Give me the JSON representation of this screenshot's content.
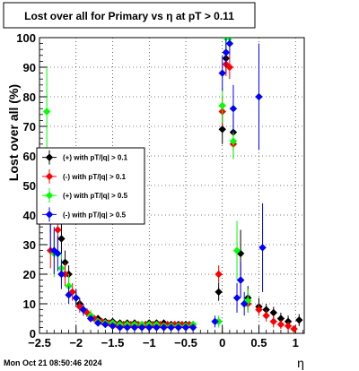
{
  "chart_data": {
    "type": "scatter",
    "title": "Lost over all for Primary vs    η at pT > 0.11",
    "xlabel": "η",
    "ylabel": "Lost over all (%)",
    "xlim": [
      -2.5,
      1.12
    ],
    "ylim": [
      0,
      100
    ],
    "x_ticks": [
      -2.5,
      -2,
      -1.5,
      -1,
      -0.5,
      0,
      0.5,
      1
    ],
    "x_tick_labels": [
      "−2.5",
      "−2",
      "−1.5",
      "−1",
      "−0.5",
      "0",
      "0.5",
      "1"
    ],
    "y_ticks": [
      0,
      10,
      20,
      30,
      40,
      50,
      60,
      70,
      80,
      90,
      100
    ],
    "y_tick_labels": [
      "0",
      "10",
      "20",
      "30",
      "40",
      "50",
      "60",
      "70",
      "80",
      "90",
      "100"
    ],
    "grid": true,
    "legend_position": "left",
    "timestamp": "Mon Oct 21 08:50:46 2024",
    "series": [
      {
        "name": "(+) with pT/|q| > 0.1",
        "color": "#000000",
        "points": [
          {
            "x": -2.35,
            "y": 42,
            "err": 8
          },
          {
            "x": -2.2,
            "y": 32,
            "err": 6
          },
          {
            "x": -2.15,
            "y": 24,
            "err": 4
          },
          {
            "x": -2.1,
            "y": 20,
            "err": 3
          },
          {
            "x": -2.0,
            "y": 12,
            "err": 2
          },
          {
            "x": -1.95,
            "y": 10,
            "err": 2
          },
          {
            "x": -1.9,
            "y": 8,
            "err": 1.5
          },
          {
            "x": -1.8,
            "y": 6,
            "err": 1
          },
          {
            "x": -1.7,
            "y": 5,
            "err": 1
          },
          {
            "x": -1.6,
            "y": 4,
            "err": 1
          },
          {
            "x": -1.5,
            "y": 4,
            "err": 1
          },
          {
            "x": -1.4,
            "y": 3.5,
            "err": 1
          },
          {
            "x": -1.3,
            "y": 3.5,
            "err": 1
          },
          {
            "x": -1.2,
            "y": 3.5,
            "err": 1
          },
          {
            "x": -1.1,
            "y": 3,
            "err": 1
          },
          {
            "x": -1.0,
            "y": 3.5,
            "err": 1
          },
          {
            "x": -0.9,
            "y": 3.5,
            "err": 1
          },
          {
            "x": -0.8,
            "y": 3.5,
            "err": 1
          },
          {
            "x": -0.7,
            "y": 3,
            "err": 1
          },
          {
            "x": -0.6,
            "y": 3,
            "err": 1
          },
          {
            "x": -0.5,
            "y": 3,
            "err": 1
          },
          {
            "x": -0.4,
            "y": 3,
            "err": 1
          },
          {
            "x": -0.05,
            "y": 14,
            "err": 3
          },
          {
            "x": 0.0,
            "y": 69,
            "err": 5
          },
          {
            "x": 0.05,
            "y": 93,
            "err": 5
          },
          {
            "x": 0.15,
            "y": 68,
            "err": 6
          },
          {
            "x": 0.25,
            "y": 27,
            "err": 8
          },
          {
            "x": 0.35,
            "y": 12,
            "err": 4
          },
          {
            "x": 0.5,
            "y": 9,
            "err": 3
          },
          {
            "x": 0.6,
            "y": 8,
            "err": 2
          },
          {
            "x": 0.7,
            "y": 7,
            "err": 2
          },
          {
            "x": 0.8,
            "y": 5,
            "err": 2
          },
          {
            "x": 0.9,
            "y": 4,
            "err": 2
          },
          {
            "x": 1.05,
            "y": 4.5,
            "err": 2
          }
        ]
      },
      {
        "name": "(-) with pT/|q| > 0.1",
        "color": "#ff0000",
        "points": [
          {
            "x": -2.35,
            "y": 28,
            "err": 6
          },
          {
            "x": -2.25,
            "y": 35,
            "err": 6
          },
          {
            "x": -2.15,
            "y": 20,
            "err": 4
          },
          {
            "x": -2.05,
            "y": 14,
            "err": 3
          },
          {
            "x": -1.95,
            "y": 9,
            "err": 2
          },
          {
            "x": -1.85,
            "y": 7,
            "err": 1.5
          },
          {
            "x": -1.75,
            "y": 5,
            "err": 1
          },
          {
            "x": -1.65,
            "y": 4,
            "err": 1
          },
          {
            "x": -1.55,
            "y": 3.5,
            "err": 1
          },
          {
            "x": -1.45,
            "y": 3,
            "err": 1
          },
          {
            "x": -1.35,
            "y": 3,
            "err": 1
          },
          {
            "x": -1.25,
            "y": 3,
            "err": 1
          },
          {
            "x": -1.15,
            "y": 3,
            "err": 1
          },
          {
            "x": -1.05,
            "y": 3,
            "err": 1
          },
          {
            "x": -0.95,
            "y": 3,
            "err": 1
          },
          {
            "x": -0.85,
            "y": 3,
            "err": 1
          },
          {
            "x": -0.75,
            "y": 3,
            "err": 1
          },
          {
            "x": -0.65,
            "y": 3,
            "err": 1
          },
          {
            "x": -0.55,
            "y": 3,
            "err": 1
          },
          {
            "x": -0.45,
            "y": 3,
            "err": 1
          },
          {
            "x": -0.05,
            "y": 20,
            "err": 3
          },
          {
            "x": 0.0,
            "y": 75,
            "err": 5
          },
          {
            "x": 0.05,
            "y": 91,
            "err": 4
          },
          {
            "x": 0.1,
            "y": 90,
            "err": 4
          },
          {
            "x": 0.15,
            "y": 64,
            "err": 5
          },
          {
            "x": 0.25,
            "y": 18,
            "err": 6
          },
          {
            "x": 0.35,
            "y": 10,
            "err": 3
          },
          {
            "x": 0.5,
            "y": 8,
            "err": 2
          },
          {
            "x": 0.6,
            "y": 6,
            "err": 2
          },
          {
            "x": 0.7,
            "y": 4,
            "err": 2
          },
          {
            "x": 0.8,
            "y": 3,
            "err": 1.5
          },
          {
            "x": 0.9,
            "y": 2.5,
            "err": 1.5
          },
          {
            "x": 0.98,
            "y": 1.5,
            "err": 1
          }
        ]
      },
      {
        "name": "(+) with pT/|q| > 0.5",
        "color": "#00ff00",
        "points": [
          {
            "x": -2.4,
            "y": 75,
            "err": 15
          },
          {
            "x": -2.3,
            "y": 27,
            "err": 8
          },
          {
            "x": -2.2,
            "y": 22,
            "err": 5
          },
          {
            "x": -2.1,
            "y": 16,
            "err": 4
          },
          {
            "x": -2.0,
            "y": 12,
            "err": 3
          },
          {
            "x": -1.9,
            "y": 8,
            "err": 2
          },
          {
            "x": -1.8,
            "y": 6,
            "err": 2
          },
          {
            "x": -1.7,
            "y": 4,
            "err": 1
          },
          {
            "x": -1.6,
            "y": 3.5,
            "err": 1
          },
          {
            "x": -1.5,
            "y": 3.5,
            "err": 1
          },
          {
            "x": -1.4,
            "y": 3,
            "err": 1
          },
          {
            "x": -1.3,
            "y": 3,
            "err": 1
          },
          {
            "x": -1.2,
            "y": 3,
            "err": 1
          },
          {
            "x": -1.1,
            "y": 3,
            "err": 1
          },
          {
            "x": -1.0,
            "y": 3,
            "err": 1
          },
          {
            "x": -0.9,
            "y": 3,
            "err": 1
          },
          {
            "x": -0.8,
            "y": 2.5,
            "err": 1
          },
          {
            "x": -0.7,
            "y": 2.5,
            "err": 1
          },
          {
            "x": -0.6,
            "y": 2.5,
            "err": 1
          },
          {
            "x": -0.5,
            "y": 2.5,
            "err": 1
          },
          {
            "x": -0.4,
            "y": 3,
            "err": 1
          },
          {
            "x": -0.05,
            "y": 4,
            "err": 2
          },
          {
            "x": 0.0,
            "y": 77,
            "err": 6
          },
          {
            "x": 0.05,
            "y": 100,
            "err": 3
          },
          {
            "x": 0.1,
            "y": 100,
            "err": 3
          },
          {
            "x": 0.15,
            "y": 65,
            "err": 6
          },
          {
            "x": 0.2,
            "y": 28,
            "err": 10
          },
          {
            "x": 0.35,
            "y": 11,
            "err": 4
          }
        ]
      },
      {
        "name": "(-) with pT/|q| > 0.5",
        "color": "#0000ff",
        "points": [
          {
            "x": -2.35,
            "y": 38,
            "err": 10
          },
          {
            "x": -2.3,
            "y": 28,
            "err": 8
          },
          {
            "x": -2.25,
            "y": 27,
            "err": 6
          },
          {
            "x": -2.2,
            "y": 20,
            "err": 5
          },
          {
            "x": -2.1,
            "y": 13,
            "err": 3
          },
          {
            "x": -2.0,
            "y": 12,
            "err": 3
          },
          {
            "x": -1.9,
            "y": 8,
            "err": 2
          },
          {
            "x": -1.8,
            "y": 5,
            "err": 1
          },
          {
            "x": -1.7,
            "y": 3.5,
            "err": 1
          },
          {
            "x": -1.6,
            "y": 3,
            "err": 1
          },
          {
            "x": -1.5,
            "y": 2.5,
            "err": 1
          },
          {
            "x": -1.4,
            "y": 2,
            "err": 1
          },
          {
            "x": -1.3,
            "y": 2,
            "err": 1
          },
          {
            "x": -1.2,
            "y": 2,
            "err": 1
          },
          {
            "x": -1.1,
            "y": 2,
            "err": 1
          },
          {
            "x": -1.0,
            "y": 2,
            "err": 1
          },
          {
            "x": -0.9,
            "y": 2,
            "err": 1
          },
          {
            "x": -0.8,
            "y": 2,
            "err": 1
          },
          {
            "x": -0.7,
            "y": 2,
            "err": 1
          },
          {
            "x": -0.6,
            "y": 2,
            "err": 1
          },
          {
            "x": -0.5,
            "y": 2,
            "err": 1
          },
          {
            "x": -0.4,
            "y": 2,
            "err": 1
          },
          {
            "x": -0.1,
            "y": 4,
            "err": 2
          },
          {
            "x": 0.0,
            "y": 88,
            "err": 6
          },
          {
            "x": 0.05,
            "y": 95,
            "err": 5
          },
          {
            "x": 0.1,
            "y": 98,
            "err": 4
          },
          {
            "x": 0.15,
            "y": 76,
            "err": 8
          },
          {
            "x": 0.2,
            "y": 12,
            "err": 5
          },
          {
            "x": 0.25,
            "y": 18,
            "err": 6
          },
          {
            "x": 0.3,
            "y": 10,
            "err": 4
          },
          {
            "x": 0.5,
            "y": 80,
            "err": 18
          },
          {
            "x": 0.55,
            "y": 29,
            "err": 15
          }
        ]
      }
    ]
  }
}
